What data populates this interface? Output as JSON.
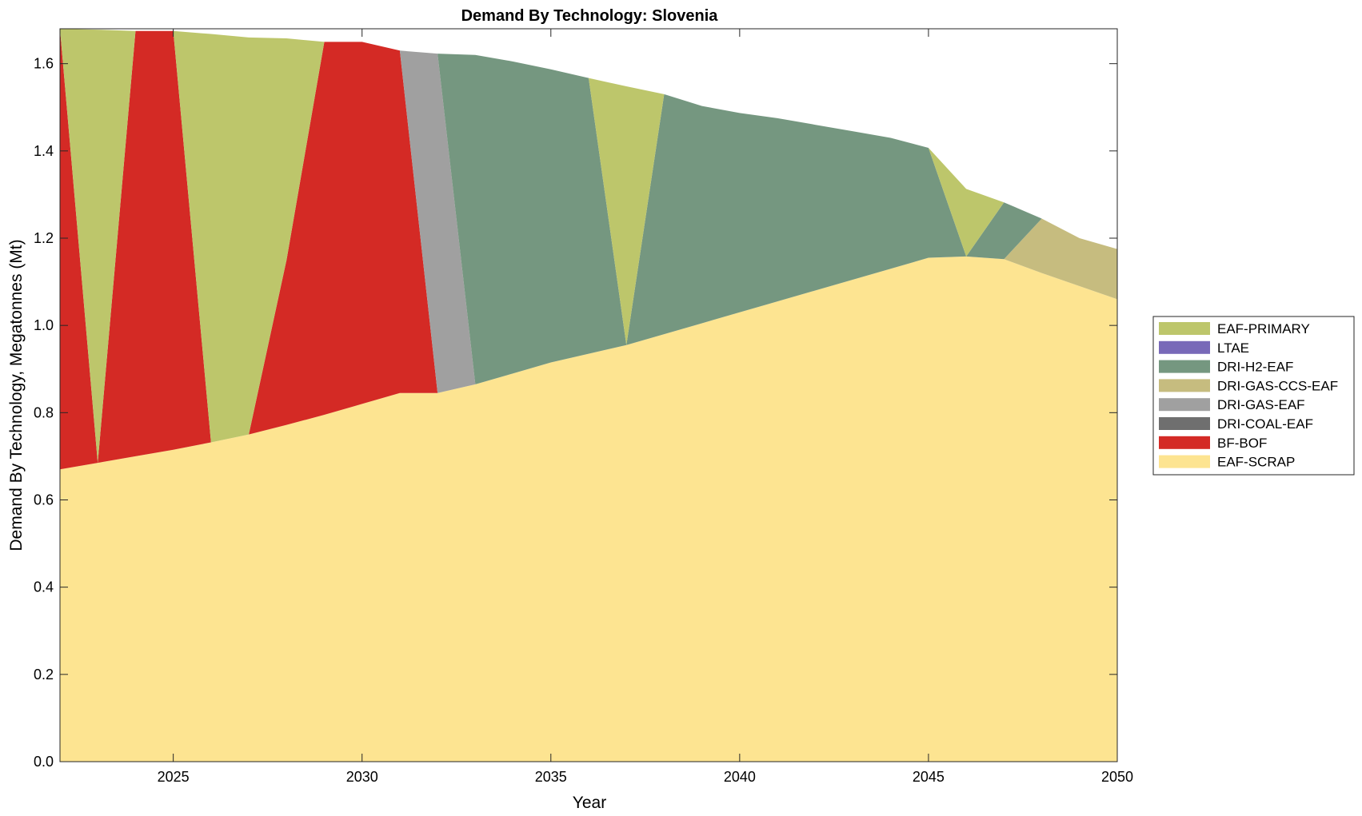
{
  "chart_data": {
    "type": "area",
    "title": "Demand By Technology: Slovenia",
    "xlabel": "Year",
    "ylabel": "Demand By Technology, Megatonnes (Mt)",
    "xlim": [
      2022,
      2050
    ],
    "ylim": [
      0,
      1.68
    ],
    "x_ticks": [
      2025,
      2030,
      2035,
      2040,
      2045,
      2050
    ],
    "y_ticks": [
      0,
      0.2,
      0.4,
      0.6,
      0.8,
      1.0,
      1.2,
      1.4,
      1.6
    ],
    "x_tick_labels": [
      "2025",
      "2030",
      "2035",
      "2040",
      "2045",
      "2050"
    ],
    "y_tick_labels": [
      "0.0",
      "0.2",
      "0.4",
      "0.6",
      "0.8",
      "1.0",
      "1.2",
      "1.4",
      "1.6"
    ],
    "grid": false,
    "legend_position": "right",
    "x": [
      2022,
      2023,
      2024,
      2025,
      2026,
      2027,
      2028,
      2029,
      2030,
      2031,
      2032,
      2033,
      2034,
      2035,
      2036,
      2037,
      2038,
      2039,
      2040,
      2041,
      2042,
      2043,
      2044,
      2045,
      2046,
      2047,
      2048,
      2049,
      2050
    ],
    "legend_order": [
      "EAF-PRIMARY",
      "LTAE",
      "DRI-H2-EAF",
      "DRI-GAS-CCS-EAF",
      "DRI-GAS-EAF",
      "DRI-COAL-EAF",
      "BF-BOF",
      "EAF-SCRAP"
    ],
    "series": [
      {
        "name": "EAF-SCRAP",
        "color": "#fde491",
        "values": [
          0.67,
          0.685,
          0.7,
          0.715,
          0.732,
          0.75,
          0.772,
          0.795,
          0.82,
          0.845,
          0.845,
          0.865,
          0.89,
          0.915,
          0.935,
          0.955,
          0.98,
          1.005,
          1.03,
          1.055,
          1.08,
          1.105,
          1.13,
          1.155,
          1.158,
          1.152,
          1.12,
          1.09,
          1.06
        ]
      },
      {
        "name": "BF-BOF",
        "color": "#d42a25",
        "values": [
          1.01,
          0.0,
          0.975,
          0.96,
          0.0,
          0.0,
          0.378,
          0.855,
          0.83,
          0.785,
          0.0,
          0.0,
          0.0,
          0.0,
          0.0,
          0.0,
          0.0,
          0.0,
          0.0,
          0.0,
          0.0,
          0.0,
          0.0,
          0.0,
          0.0,
          0.0,
          0.0,
          0.0,
          0.0
        ]
      },
      {
        "name": "DRI-COAL-EAF",
        "color": "#6f6f6f",
        "values": [
          0,
          0,
          0,
          0,
          0,
          0,
          0,
          0,
          0,
          0,
          0,
          0,
          0,
          0,
          0,
          0,
          0,
          0,
          0,
          0,
          0,
          0,
          0,
          0,
          0,
          0,
          0,
          0,
          0
        ]
      },
      {
        "name": "DRI-GAS-EAF",
        "color": "#a0a0a0",
        "values": [
          0.0,
          0.0,
          0.0,
          0.0,
          0.0,
          0.0,
          0.0,
          0.0,
          0.0,
          0.0,
          0.778,
          0.0,
          0.0,
          0.0,
          0.0,
          0.0,
          0.0,
          0.0,
          0.0,
          0.0,
          0.0,
          0.0,
          0.0,
          0.0,
          0.0,
          0.0,
          0.0,
          0.0,
          0.0
        ]
      },
      {
        "name": "DRI-GAS-CCS-EAF",
        "color": "#c6bc7f",
        "values": [
          0,
          0,
          0,
          0,
          0,
          0,
          0,
          0,
          0,
          0,
          0,
          0,
          0,
          0,
          0,
          0,
          0,
          0,
          0,
          0,
          0,
          0,
          0,
          0,
          0,
          0,
          0.125,
          0.11,
          0.115
        ]
      },
      {
        "name": "DRI-H2-EAF",
        "color": "#759780",
        "values": [
          0.0,
          0.0,
          0.0,
          0.0,
          0.0,
          0.0,
          0.0,
          0.0,
          0.0,
          0.0,
          0.0,
          0.755,
          0.715,
          0.672,
          0.632,
          0.0,
          0.55,
          0.498,
          0.457,
          0.42,
          0.38,
          0.34,
          0.3,
          0.252,
          0.0,
          0.13,
          0.0,
          0.0,
          0.0
        ]
      },
      {
        "name": "LTAE",
        "color": "#7869b8",
        "values": [
          0,
          0,
          0,
          0,
          0,
          0,
          0,
          0,
          0,
          0,
          0,
          0,
          0,
          0,
          0,
          0,
          0,
          0,
          0,
          0,
          0,
          0,
          0,
          0,
          0,
          0,
          0,
          0,
          0
        ]
      },
      {
        "name": "EAF-PRIMARY",
        "color": "#bdc66b",
        "values": [
          0.0,
          0.993,
          0.0,
          0.0,
          0.936,
          0.91,
          0.508,
          0.0,
          0.0,
          0.0,
          0.0,
          0.0,
          0.0,
          0.0,
          0.0,
          0.593,
          0.0,
          0.0,
          0.0,
          0.0,
          0.0,
          0.0,
          0.0,
          0.0,
          0.155,
          0.0,
          0.0,
          0.0,
          0.0
        ]
      }
    ]
  }
}
